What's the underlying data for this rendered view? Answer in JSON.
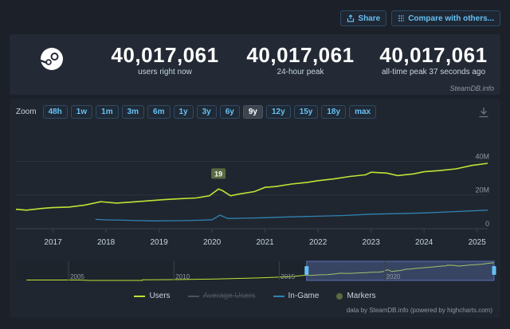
{
  "top": {
    "share_label": "Share",
    "compare_label": "Compare with others..."
  },
  "stats": [
    {
      "value": "40,017,061",
      "label": "users right now"
    },
    {
      "value": "40,017,061",
      "label": "24-hour peak"
    },
    {
      "value": "40,017,061",
      "label": "all-time peak 37 seconds ago"
    }
  ],
  "watermark": "SteamDB.info",
  "zoom": {
    "label": "Zoom",
    "options": [
      "48h",
      "1w",
      "1m",
      "3m",
      "6m",
      "1y",
      "3y",
      "6y",
      "9y",
      "12y",
      "15y",
      "18y",
      "max"
    ],
    "active": "9y"
  },
  "colors": {
    "users": "#bfe336",
    "ingame": "#2f83b5",
    "marker": "#5a6b40",
    "accent": "#66c0f4"
  },
  "chart_data": {
    "type": "line",
    "x_ticks": [
      "2017",
      "2018",
      "2019",
      "2020",
      "2021",
      "2022",
      "2023",
      "2024",
      "2025"
    ],
    "y_ticks": [
      "0",
      "20M",
      "40M"
    ],
    "ylim": [
      0,
      44000000
    ],
    "grid": true,
    "legend_position": "bottom",
    "series": [
      {
        "name": "Users",
        "x": [
          2016.3,
          2016.5,
          2016.8,
          2017.0,
          2017.3,
          2017.6,
          2017.9,
          2018.2,
          2018.5,
          2018.8,
          2019.1,
          2019.4,
          2019.7,
          2019.95,
          2020.12,
          2020.2,
          2020.35,
          2020.5,
          2020.8,
          2021.0,
          2021.2,
          2021.5,
          2021.8,
          2022.0,
          2022.3,
          2022.6,
          2022.9,
          2023.0,
          2023.3,
          2023.5,
          2023.8,
          2024.0,
          2024.3,
          2024.6,
          2024.9,
          2025.2
        ],
        "values": [
          11500000,
          11000000,
          12000000,
          12500000,
          12800000,
          14000000,
          16000000,
          15200000,
          15800000,
          16500000,
          17200000,
          17800000,
          18200000,
          19500000,
          23500000,
          22500000,
          19500000,
          20500000,
          22000000,
          24500000,
          25000000,
          26500000,
          27500000,
          28500000,
          29500000,
          31000000,
          32000000,
          33500000,
          33000000,
          31500000,
          32500000,
          33800000,
          34500000,
          35500000,
          37500000,
          38800000
        ]
      },
      {
        "name": "Average Users",
        "visible": false,
        "x": [],
        "values": []
      },
      {
        "name": "In-Game",
        "x": [
          2017.8,
          2018.0,
          2018.3,
          2018.6,
          2018.9,
          2019.2,
          2019.5,
          2019.8,
          2020.0,
          2020.15,
          2020.3,
          2020.6,
          2021.0,
          2021.5,
          2022.0,
          2022.5,
          2023.0,
          2023.5,
          2024.0,
          2024.5,
          2025.2
        ],
        "values": [
          5500000,
          5200000,
          5000000,
          4800000,
          4600000,
          4700000,
          4800000,
          5000000,
          5300000,
          8000000,
          6000000,
          6200000,
          6500000,
          7000000,
          7400000,
          7800000,
          8600000,
          8900000,
          9300000,
          10000000,
          11000000
        ]
      }
    ],
    "markers": [
      {
        "label": "19",
        "x": 2020.12
      }
    ],
    "navigator": {
      "ticks": [
        "2005",
        "2010",
        "2015",
        "2020"
      ],
      "range": [
        2016.3,
        2025.2
      ]
    }
  },
  "legend": [
    {
      "key": "users",
      "label": "Users",
      "kind": "line",
      "active": true
    },
    {
      "key": "avg",
      "label": "Average Users",
      "kind": "line",
      "active": false
    },
    {
      "key": "ingame",
      "label": "In-Game",
      "kind": "line",
      "active": true
    },
    {
      "key": "markers",
      "label": "Markers",
      "kind": "dot",
      "active": true
    }
  ],
  "credit": "data by SteamDB.info (powered by highcharts.com)"
}
